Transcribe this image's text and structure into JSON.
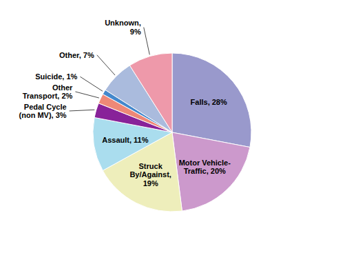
{
  "chart_data": {
    "type": "pie",
    "categories": [
      "Falls, 28%",
      "Motor Vehicle-\nTraffic, 20%",
      "Struck\nBy/Against,\n19%",
      "Assault, 11%",
      "Pedal Cycle\n(non MV), 3%",
      "Other\nTransport, 2%",
      "Suicide, 1%",
      "Other, 7%",
      "Unknown,\n9%"
    ],
    "values": [
      28,
      20,
      19,
      11,
      3,
      2,
      1,
      7,
      9
    ],
    "colors": [
      "#9999cc",
      "#cc99cc",
      "#eeeebb",
      "#aaddee",
      "#882299",
      "#ee8877",
      "#4488cc",
      "#aabbdd",
      "#ee99aa"
    ]
  }
}
